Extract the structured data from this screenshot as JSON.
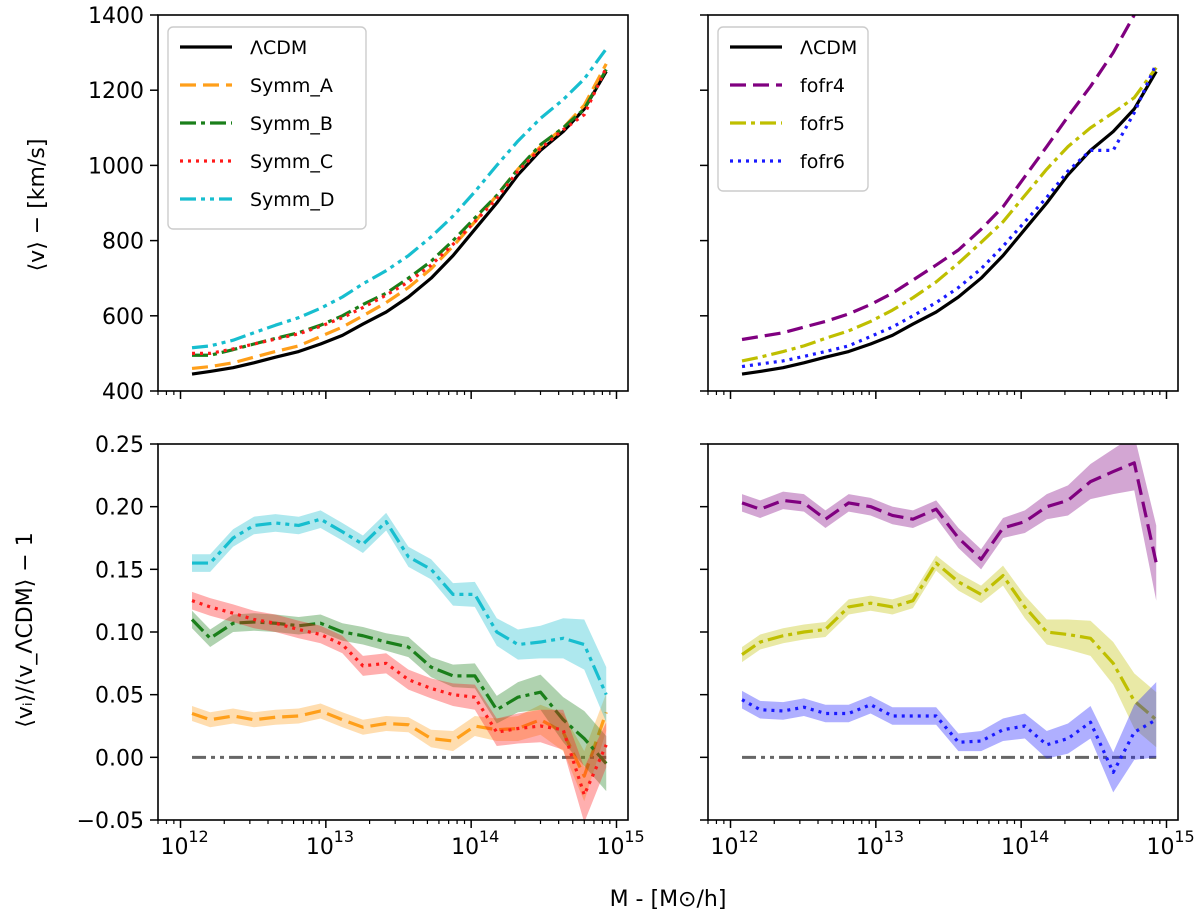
{
  "figure": {
    "xlabel": "M - [M⊙/h]",
    "ylabel_top": "⟨v⟩ − [km/s]",
    "ylabel_bottom": "⟨vᵢ⟩/⟨v_ΛCDM⟩ − 1"
  },
  "chart_data": [
    {
      "type": "line",
      "panel": "top-left",
      "xscale": "log",
      "xlim": [
        700000000000.0,
        1200000000000000.0
      ],
      "ylim": [
        400,
        1400
      ],
      "xticks": [
        {
          "value": 1000000000000.0,
          "label": "10",
          "exp": "12"
        },
        {
          "value": 10000000000000.0,
          "label": "10",
          "exp": "13"
        },
        {
          "value": 100000000000000.0,
          "label": "10",
          "exp": "14"
        },
        {
          "value": 1000000000000000.0,
          "label": "10",
          "exp": "15"
        }
      ],
      "yticks": [
        400,
        600,
        800,
        1000,
        1200,
        1400
      ],
      "legend": "top-left",
      "x": [
        1200000000000.0,
        1600000000000.0,
        2300000000000.0,
        3200000000000.0,
        4500000000000.0,
        6500000000000.0,
        9200000000000.0,
        13000000000000.0,
        18000000000000.0,
        26000000000000.0,
        37000000000000.0,
        53000000000000.0,
        75000000000000.0,
        106000000000000.0,
        150000000000000.0,
        210000000000000.0,
        300000000000000.0,
        430000000000000.0,
        600000000000000.0,
        850000000000000.0
      ],
      "series": [
        {
          "name": "ΛCDM",
          "color": "#000000",
          "dash": "solid",
          "values": [
            445,
            452,
            462,
            475,
            490,
            505,
            525,
            548,
            578,
            610,
            650,
            700,
            760,
            830,
            900,
            975,
            1040,
            1090,
            1150,
            1250
          ]
        },
        {
          "name": "Symm_A",
          "color": "#ff9f1a",
          "dash": "dashed",
          "values": [
            460,
            465,
            475,
            490,
            505,
            520,
            545,
            570,
            600,
            635,
            675,
            725,
            785,
            850,
            920,
            990,
            1050,
            1100,
            1160,
            1270
          ]
        },
        {
          "name": "Symm_B",
          "color": "#1a7f1a",
          "dash": "dashdot",
          "values": [
            495,
            495,
            510,
            525,
            540,
            555,
            575,
            600,
            630,
            660,
            700,
            745,
            800,
            860,
            920,
            990,
            1055,
            1100,
            1150,
            1255
          ]
        },
        {
          "name": "Symm_C",
          "color": "#ff1a1a",
          "dash": "dotted",
          "values": [
            500,
            500,
            512,
            525,
            538,
            552,
            572,
            595,
            622,
            655,
            690,
            735,
            790,
            850,
            912,
            985,
            1045,
            1095,
            1135,
            1260
          ]
        },
        {
          "name": "Symm_D",
          "color": "#17becf",
          "dash": "dashdotdot",
          "values": [
            515,
            520,
            535,
            555,
            575,
            595,
            620,
            650,
            685,
            720,
            760,
            810,
            865,
            930,
            1000,
            1065,
            1125,
            1175,
            1230,
            1310
          ]
        }
      ]
    },
    {
      "type": "line",
      "panel": "top-right",
      "xscale": "log",
      "xlim": [
        700000000000.0,
        1200000000000000.0
      ],
      "ylim": [
        400,
        1400
      ],
      "xticks": [
        {
          "value": 1000000000000.0,
          "label": "10",
          "exp": "12"
        },
        {
          "value": 10000000000000.0,
          "label": "10",
          "exp": "13"
        },
        {
          "value": 100000000000000.0,
          "label": "10",
          "exp": "14"
        },
        {
          "value": 1000000000000000.0,
          "label": "10",
          "exp": "15"
        }
      ],
      "yticks": [],
      "legend": "top-left",
      "x": [
        1200000000000.0,
        1600000000000.0,
        2300000000000.0,
        3200000000000.0,
        4500000000000.0,
        6500000000000.0,
        9200000000000.0,
        13000000000000.0,
        18000000000000.0,
        26000000000000.0,
        37000000000000.0,
        53000000000000.0,
        75000000000000.0,
        106000000000000.0,
        150000000000000.0,
        210000000000000.0,
        300000000000000.0,
        430000000000000.0,
        600000000000000.0,
        850000000000000.0
      ],
      "series": [
        {
          "name": "ΛCDM",
          "color": "#000000",
          "dash": "solid",
          "values": [
            445,
            452,
            462,
            475,
            490,
            505,
            525,
            548,
            578,
            610,
            650,
            700,
            760,
            830,
            900,
            975,
            1040,
            1090,
            1150,
            1250
          ]
        },
        {
          "name": "fofr4",
          "color": "#800080",
          "dash": "dashed",
          "values": [
            537,
            545,
            555,
            570,
            585,
            605,
            630,
            660,
            695,
            735,
            775,
            830,
            890,
            970,
            1050,
            1130,
            1210,
            1300,
            1400,
            null
          ]
        },
        {
          "name": "fofr5",
          "color": "#bfbf00",
          "dash": "dashdot",
          "values": [
            480,
            490,
            505,
            520,
            540,
            560,
            585,
            615,
            648,
            690,
            740,
            795,
            850,
            920,
            990,
            1050,
            1100,
            1140,
            1180,
            1260
          ]
        },
        {
          "name": "fofr6",
          "color": "#1a1aff",
          "dash": "dotted",
          "values": [
            465,
            472,
            480,
            492,
            505,
            520,
            545,
            570,
            600,
            635,
            675,
            725,
            785,
            850,
            915,
            985,
            1040,
            1040,
            1140,
            1270
          ]
        }
      ]
    },
    {
      "type": "line",
      "panel": "bottom-left",
      "xscale": "log",
      "xlim": [
        700000000000.0,
        1200000000000000.0
      ],
      "ylim": [
        -0.05,
        0.25
      ],
      "xticks": [
        {
          "value": 1000000000000.0,
          "label": "10",
          "exp": "12"
        },
        {
          "value": 10000000000000.0,
          "label": "10",
          "exp": "13"
        },
        {
          "value": 100000000000000.0,
          "label": "10",
          "exp": "14"
        },
        {
          "value": 1000000000000000.0,
          "label": "10",
          "exp": "15"
        }
      ],
      "yticks": [
        "−0.05",
        "0.00",
        "0.05",
        "0.10",
        "0.15",
        "0.20",
        "0.25"
      ],
      "x": [
        1200000000000.0,
        1600000000000.0,
        2300000000000.0,
        3200000000000.0,
        4500000000000.0,
        6500000000000.0,
        9200000000000.0,
        13000000000000.0,
        18000000000000.0,
        26000000000000.0,
        37000000000000.0,
        53000000000000.0,
        75000000000000.0,
        106000000000000.0,
        150000000000000.0,
        210000000000000.0,
        300000000000000.0,
        430000000000000.0,
        600000000000000.0,
        850000000000000.0
      ],
      "reference": {
        "value": 0.0,
        "color": "#666666"
      },
      "series": [
        {
          "name": "Symm_A",
          "color": "#ff9f1a",
          "dash": "dashed",
          "values": [
            0.035,
            0.03,
            0.033,
            0.03,
            0.032,
            0.033,
            0.037,
            0.03,
            0.024,
            0.027,
            0.026,
            0.015,
            0.013,
            0.025,
            0.022,
            0.023,
            0.03,
            0.02,
            -0.015,
            0.036
          ],
          "band": [
            0.006,
            0.006,
            0.006,
            0.006,
            0.006,
            0.006,
            0.006,
            0.006,
            0.006,
            0.006,
            0.006,
            0.007,
            0.008,
            0.008,
            0.009,
            0.01,
            0.012,
            0.015,
            0.02,
            0.015
          ]
        },
        {
          "name": "Symm_B",
          "color": "#1a7f1a",
          "dash": "dashdot",
          "values": [
            0.11,
            0.095,
            0.107,
            0.108,
            0.107,
            0.105,
            0.107,
            0.1,
            0.097,
            0.092,
            0.088,
            0.072,
            0.065,
            0.065,
            0.038,
            0.048,
            0.052,
            0.03,
            0.015,
            -0.005
          ],
          "band": [
            0.007,
            0.007,
            0.007,
            0.007,
            0.007,
            0.007,
            0.007,
            0.007,
            0.007,
            0.007,
            0.008,
            0.008,
            0.009,
            0.01,
            0.011,
            0.012,
            0.014,
            0.018,
            0.022,
            0.022
          ]
        },
        {
          "name": "Symm_C",
          "color": "#ff1a1a",
          "dash": "dotted",
          "values": [
            0.125,
            0.12,
            0.115,
            0.11,
            0.107,
            0.102,
            0.098,
            0.09,
            0.073,
            0.075,
            0.062,
            0.055,
            0.05,
            0.048,
            0.02,
            0.023,
            0.025,
            0.022,
            -0.03,
            0.01
          ],
          "band": [
            0.007,
            0.007,
            0.007,
            0.007,
            0.007,
            0.007,
            0.007,
            0.007,
            0.008,
            0.008,
            0.008,
            0.008,
            0.009,
            0.01,
            0.011,
            0.012,
            0.013,
            0.016,
            0.022,
            0.018
          ]
        },
        {
          "name": "Symm_D",
          "color": "#17becf",
          "dash": "dashdotdot",
          "values": [
            0.155,
            0.155,
            0.175,
            0.185,
            0.187,
            0.185,
            0.19,
            0.18,
            0.17,
            0.188,
            0.16,
            0.15,
            0.13,
            0.13,
            0.1,
            0.09,
            0.092,
            0.095,
            0.09,
            0.05
          ],
          "band": [
            0.007,
            0.007,
            0.007,
            0.007,
            0.007,
            0.007,
            0.007,
            0.007,
            0.007,
            0.007,
            0.008,
            0.008,
            0.009,
            0.01,
            0.011,
            0.012,
            0.013,
            0.016,
            0.02,
            0.022
          ]
        }
      ]
    },
    {
      "type": "line",
      "panel": "bottom-right",
      "xscale": "log",
      "xlim": [
        700000000000.0,
        1200000000000000.0
      ],
      "ylim": [
        -0.05,
        0.25
      ],
      "xticks": [
        {
          "value": 1000000000000.0,
          "label": "10",
          "exp": "12"
        },
        {
          "value": 10000000000000.0,
          "label": "10",
          "exp": "13"
        },
        {
          "value": 100000000000000.0,
          "label": "10",
          "exp": "14"
        },
        {
          "value": 1000000000000000.0,
          "label": "10",
          "exp": "15"
        }
      ],
      "yticks": [],
      "x": [
        1200000000000.0,
        1600000000000.0,
        2300000000000.0,
        3200000000000.0,
        4500000000000.0,
        6500000000000.0,
        9200000000000.0,
        13000000000000.0,
        18000000000000.0,
        26000000000000.0,
        37000000000000.0,
        53000000000000.0,
        75000000000000.0,
        106000000000000.0,
        150000000000000.0,
        210000000000000.0,
        300000000000000.0,
        430000000000000.0,
        600000000000000.0,
        850000000000000.0
      ],
      "reference": {
        "value": 0.0,
        "color": "#666666"
      },
      "series": [
        {
          "name": "fofr4",
          "color": "#800080",
          "dash": "dashed",
          "values": [
            0.203,
            0.198,
            0.205,
            0.203,
            0.19,
            0.203,
            0.2,
            0.193,
            0.19,
            0.198,
            0.175,
            0.158,
            0.183,
            0.188,
            0.2,
            0.205,
            0.22,
            0.228,
            0.235,
            0.155
          ],
          "band": [
            0.007,
            0.007,
            0.007,
            0.007,
            0.007,
            0.007,
            0.007,
            0.007,
            0.007,
            0.007,
            0.008,
            0.008,
            0.008,
            0.009,
            0.01,
            0.012,
            0.014,
            0.018,
            0.022,
            0.03
          ]
        },
        {
          "name": "fofr5",
          "color": "#bfbf00",
          "dash": "dashdot",
          "values": [
            0.082,
            0.092,
            0.097,
            0.1,
            0.102,
            0.12,
            0.123,
            0.12,
            0.125,
            0.155,
            0.14,
            0.13,
            0.145,
            0.12,
            0.1,
            0.098,
            0.095,
            0.075,
            0.045,
            0.03
          ],
          "band": [
            0.006,
            0.006,
            0.006,
            0.006,
            0.006,
            0.006,
            0.006,
            0.006,
            0.006,
            0.006,
            0.007,
            0.007,
            0.008,
            0.009,
            0.01,
            0.012,
            0.014,
            0.017,
            0.022,
            0.022
          ]
        },
        {
          "name": "fofr6",
          "color": "#1a1aff",
          "dash": "dotted",
          "values": [
            0.046,
            0.038,
            0.037,
            0.04,
            0.035,
            0.035,
            0.042,
            0.033,
            0.033,
            0.033,
            0.012,
            0.013,
            0.022,
            0.025,
            0.01,
            0.015,
            0.028,
            -0.012,
            0.02,
            0.03
          ],
          "band": [
            0.007,
            0.007,
            0.007,
            0.007,
            0.007,
            0.007,
            0.007,
            0.007,
            0.007,
            0.007,
            0.007,
            0.008,
            0.009,
            0.01,
            0.011,
            0.012,
            0.013,
            0.016,
            0.022,
            0.03
          ]
        }
      ]
    }
  ]
}
